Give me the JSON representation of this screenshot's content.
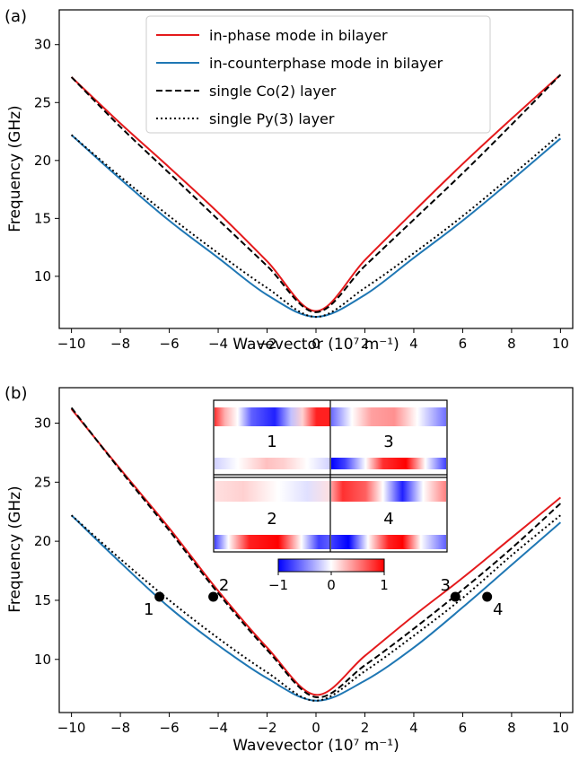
{
  "chart_data": [
    {
      "panel": "(a)",
      "type": "line",
      "xlabel": "Wavevector (10⁷ m⁻¹)",
      "ylabel": "Frequency (GHz)",
      "xlim": [
        -10.5,
        10.5
      ],
      "ylim": [
        5.5,
        33
      ],
      "xticks": [
        -10,
        -8,
        -6,
        -4,
        -2,
        0,
        2,
        4,
        6,
        8,
        10
      ],
      "yticks": [
        10,
        15,
        20,
        25,
        30
      ],
      "legend_position": "top-center",
      "series": [
        {
          "name": "in-phase mode in bilayer",
          "color": "#e41a1c",
          "dash": "solid",
          "x": [
            -10,
            -8,
            -6,
            -4,
            -2,
            0,
            2,
            4,
            6,
            8,
            10
          ],
          "y": [
            27.2,
            23.2,
            19.4,
            15.5,
            11.3,
            7.0,
            11.4,
            15.6,
            19.7,
            23.6,
            27.4
          ]
        },
        {
          "name": "in-counterphase mode in bilayer",
          "color": "#1f77b4",
          "dash": "solid",
          "x": [
            -10,
            -8,
            -6,
            -4,
            -2,
            0,
            2,
            4,
            6,
            8,
            10
          ],
          "y": [
            22.2,
            18.4,
            14.8,
            11.6,
            8.4,
            6.5,
            8.4,
            11.6,
            14.8,
            18.3,
            21.9
          ]
        },
        {
          "name": "single Co(2) layer",
          "color": "#000000",
          "dash": "dashed",
          "x": [
            -10,
            -8,
            -6,
            -4,
            -2,
            0,
            2,
            4,
            6,
            8,
            10
          ],
          "y": [
            27.2,
            22.9,
            18.9,
            14.9,
            10.9,
            6.9,
            10.9,
            14.9,
            18.9,
            23.1,
            27.4
          ]
        },
        {
          "name": "single Py(3) layer",
          "color": "#000000",
          "dash": "dotted",
          "x": [
            -10,
            -8,
            -6,
            -4,
            -2,
            0,
            2,
            4,
            6,
            8,
            10
          ],
          "y": [
            22.2,
            18.6,
            15.2,
            12.0,
            9.0,
            6.5,
            9.0,
            12.0,
            15.2,
            18.7,
            22.3
          ]
        }
      ]
    },
    {
      "panel": "(b)",
      "type": "line",
      "xlabel": "Wavevector (10⁷ m⁻¹)",
      "ylabel": "Frequency (GHz)",
      "xlim": [
        -10.5,
        10.5
      ],
      "ylim": [
        5.5,
        33
      ],
      "xticks": [
        -10,
        -8,
        -6,
        -4,
        -2,
        0,
        2,
        4,
        6,
        8,
        10
      ],
      "yticks": [
        10,
        15,
        20,
        25,
        30
      ],
      "series": [
        {
          "name": "in-phase mode in bilayer",
          "color": "#e41a1c",
          "dash": "solid",
          "x": [
            -10,
            -8,
            -6,
            -4,
            -2,
            0,
            2,
            4,
            6,
            8,
            10
          ],
          "y": [
            31.2,
            26.1,
            21.1,
            15.8,
            11.0,
            7.0,
            10.3,
            13.7,
            16.9,
            20.3,
            23.7
          ]
        },
        {
          "name": "in-counterphase mode in bilayer",
          "color": "#1f77b4",
          "dash": "solid",
          "x": [
            -10,
            -8,
            -6,
            -4,
            -2,
            0,
            2,
            4,
            6,
            8,
            10
          ],
          "y": [
            22.2,
            18.2,
            14.4,
            11.2,
            8.4,
            6.5,
            8.2,
            11.0,
            14.4,
            18.0,
            21.6
          ]
        },
        {
          "name": "single Co(2) layer",
          "color": "#000000",
          "dash": "dashed",
          "x": [
            -10,
            -8,
            -6,
            -4,
            -2,
            0,
            2,
            4,
            6,
            8,
            10
          ],
          "y": [
            31.3,
            26.0,
            20.9,
            15.6,
            10.8,
            6.8,
            9.5,
            12.6,
            15.9,
            19.4,
            23.2
          ]
        },
        {
          "name": "single Py(3) layer",
          "color": "#000000",
          "dash": "dotted",
          "x": [
            -10,
            -8,
            -6,
            -4,
            -2,
            0,
            2,
            4,
            6,
            8,
            10
          ],
          "y": [
            22.2,
            18.5,
            15.0,
            11.8,
            8.9,
            6.5,
            9.0,
            12.0,
            15.2,
            18.8,
            22.2
          ]
        }
      ],
      "points": [
        {
          "label": "1",
          "x": -6.4,
          "y": 15.3
        },
        {
          "label": "2",
          "x": -4.2,
          "y": 15.3
        },
        {
          "label": "3",
          "x": 5.7,
          "y": 15.3
        },
        {
          "label": "4",
          "x": 7.0,
          "y": 15.3
        }
      ],
      "inset": {
        "panels": [
          "1",
          "3",
          "2",
          "4"
        ],
        "colorbar_ticks": [
          "−1",
          "0",
          "1"
        ],
        "colorbar_range": [
          -1,
          1
        ]
      }
    }
  ]
}
